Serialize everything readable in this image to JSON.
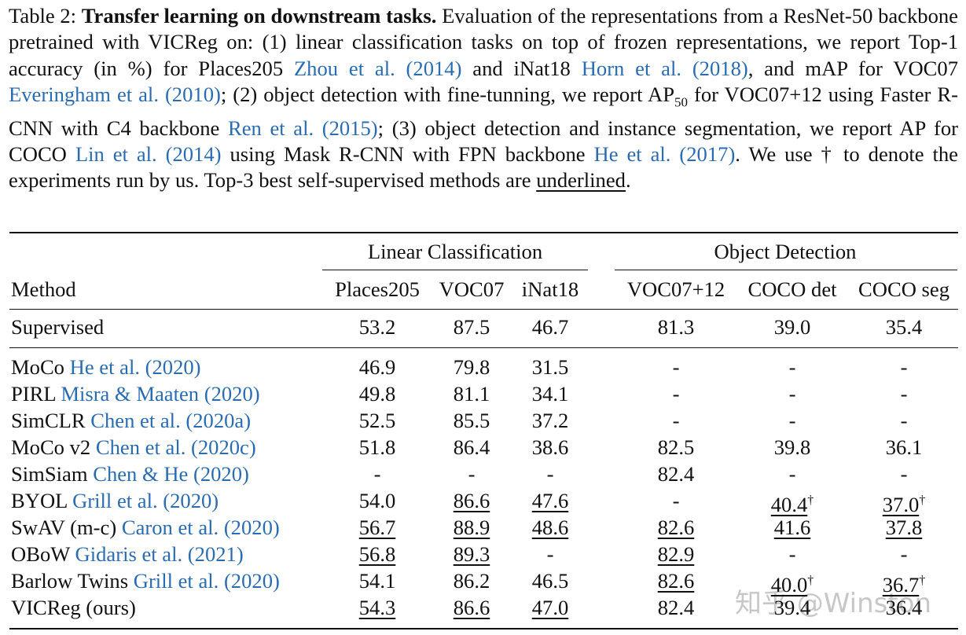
{
  "caption": [
    {
      "text": "Table 2: "
    },
    {
      "text": "Transfer learning on downstream tasks.",
      "style": "bold"
    },
    {
      "text": " Evaluation of the representations from a ResNet-50 backbone pretrained with VICReg on: (1) linear classification tasks on top of frozen representations, we report Top-1 accuracy (in %) for Places205 "
    },
    {
      "text": "Zhou et al. (2014)",
      "style": "link"
    },
    {
      "text": " and iNat18 "
    },
    {
      "text": "Horn et al. (2018)",
      "style": "link"
    },
    {
      "text": ", and mAP for VOC07 "
    },
    {
      "text": "Everingham et al. (2010)",
      "style": "link"
    },
    {
      "text": "; (2) object detection with fine-tunning, we report AP"
    },
    {
      "text": "50",
      "style": "sub"
    },
    {
      "text": " for VOC07+12 using Faster R-CNN with C4 backbone "
    },
    {
      "text": "Ren et al. (2015)",
      "style": "link"
    },
    {
      "text": "; (3) object detection and instance segmentation, we report AP for COCO "
    },
    {
      "text": "Lin et al. (2014)",
      "style": "link"
    },
    {
      "text": " using Mask R-CNN with FPN backbone "
    },
    {
      "text": "He et al. (2017)",
      "style": "link"
    },
    {
      "text": ". We use † to denote the experiments run by us. Top-3 best self-supervised methods are "
    },
    {
      "text": "underlined",
      "style": "underline"
    },
    {
      "text": "."
    }
  ],
  "table": {
    "groups": [
      "Linear Classification",
      "Object Detection"
    ],
    "header": [
      "Method",
      "Places205",
      "VOC07",
      "iNat18",
      "VOC07+12",
      "COCO det",
      "COCO seg"
    ],
    "baseline": [
      {
        "name": "Supervised"
      },
      "53.2",
      "87.5",
      "46.7",
      "81.3",
      "39.0",
      "35.4"
    ],
    "rows": [
      [
        {
          "name": "MoCo",
          "cite": "He et al. (2020)"
        },
        "46.9",
        "79.8",
        "31.5",
        "-",
        "-",
        "-"
      ],
      [
        {
          "name": "PIRL",
          "cite": "Misra & Maaten (2020)"
        },
        "49.8",
        "81.1",
        "34.1",
        "-",
        "-",
        "-"
      ],
      [
        {
          "name": "SimCLR",
          "cite": "Chen et al. (2020a)"
        },
        "52.5",
        "85.5",
        "37.2",
        "-",
        "-",
        "-"
      ],
      [
        {
          "name": "MoCo v2",
          "cite": "Chen et al. (2020c)"
        },
        "51.8",
        "86.4",
        "38.6",
        "82.5",
        "39.8",
        "36.1"
      ],
      [
        {
          "name": "SimSiam",
          "cite": "Chen & He (2020)"
        },
        "-",
        "-",
        "-",
        "82.4",
        "-",
        "-"
      ],
      [
        {
          "name": "BYOL",
          "cite": "Grill et al. (2020)"
        },
        "54.0",
        {
          "text": "86.6",
          "underline": true
        },
        {
          "text": "47.6",
          "underline": true
        },
        "-",
        {
          "text": "40.4",
          "underline": true,
          "sup": "†"
        },
        {
          "text": "37.0",
          "underline": true,
          "sup": "†"
        }
      ],
      [
        {
          "name": "SwAV (m-c)",
          "cite": "Caron et al. (2020)"
        },
        {
          "text": "56.7",
          "underline": true
        },
        {
          "text": "88.9",
          "underline": true
        },
        {
          "text": "48.6",
          "underline": true
        },
        {
          "text": "82.6",
          "underline": true
        },
        {
          "text": "41.6",
          "underline": true
        },
        {
          "text": "37.8",
          "underline": true
        }
      ],
      [
        {
          "name": "OBoW",
          "cite": "Gidaris et al. (2021)"
        },
        {
          "text": "56.8",
          "underline": true
        },
        {
          "text": "89.3",
          "underline": true
        },
        "-",
        {
          "text": "82.9",
          "underline": true
        },
        "-",
        "-"
      ],
      [
        {
          "name": "Barlow Twins",
          "cite": "Grill et al. (2020)"
        },
        "54.1",
        "86.2",
        "46.5",
        {
          "text": "82.6",
          "underline": true
        },
        {
          "text": "40.0",
          "underline": true,
          "sup": "†"
        },
        {
          "text": "36.7",
          "underline": true,
          "sup": "†"
        }
      ],
      [
        {
          "name": "VICReg (ours)"
        },
        {
          "text": "54.3",
          "underline": true
        },
        {
          "text": "86.6",
          "underline": true
        },
        {
          "text": "47.0",
          "underline": true
        },
        "82.4",
        "39.4",
        "36.4"
      ]
    ]
  },
  "watermark": "知乎 @Winston"
}
